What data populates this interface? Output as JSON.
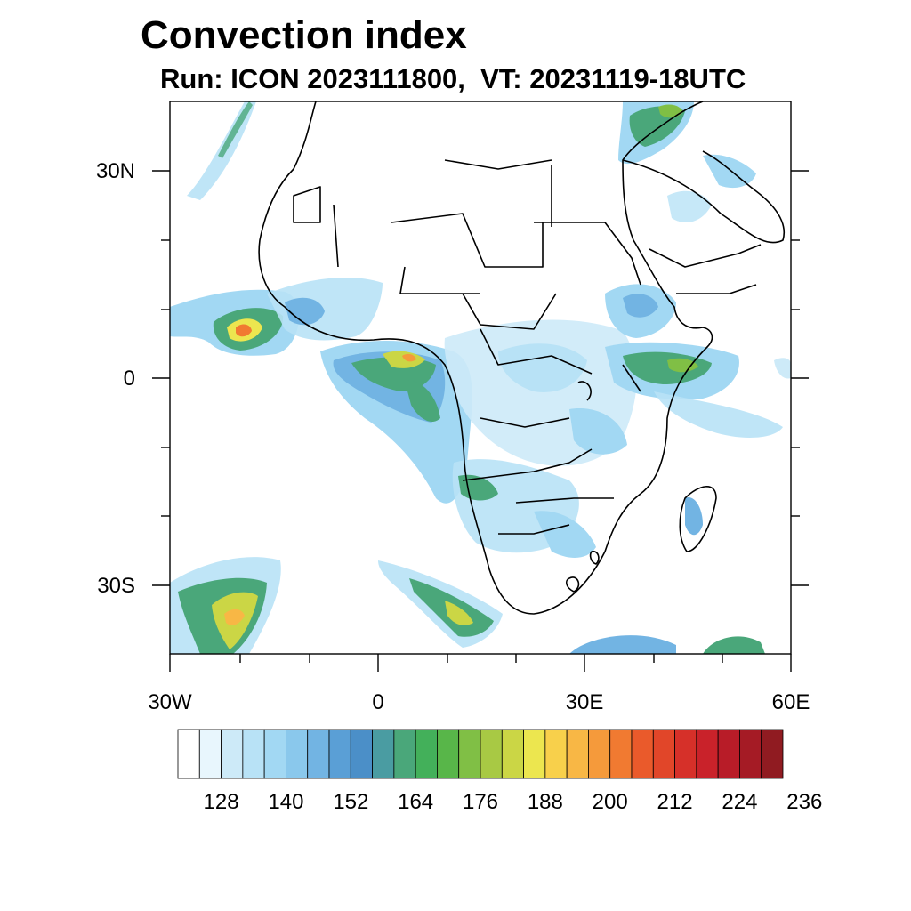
{
  "title": "Convection index",
  "subtitle": "Run: ICON 2023111800,  VT: 20231119-18UTC",
  "map": {
    "lon_range": [
      -30,
      60
    ],
    "lat_range": [
      -40,
      40
    ],
    "lat_ticks": [
      {
        "value": 30,
        "label": "30N"
      },
      {
        "value": 0,
        "label": "0"
      },
      {
        "value": -30,
        "label": "30S"
      }
    ],
    "lon_ticks": [
      {
        "value": -30,
        "label": "30W"
      },
      {
        "value": 0,
        "label": "0"
      },
      {
        "value": 30,
        "label": "30E"
      },
      {
        "value": 60,
        "label": "60E"
      }
    ]
  },
  "colorbar": {
    "colors": [
      "#ffffff",
      "#e8f6fd",
      "#cdeaf8",
      "#b8e2f6",
      "#a2d8f3",
      "#8ac8ec",
      "#72b4e3",
      "#5a9fd6",
      "#4b8fc8",
      "#4a9ca2",
      "#4aa77a",
      "#43b05a",
      "#58b649",
      "#80bf45",
      "#a8c944",
      "#cbd645",
      "#ece64f",
      "#f8d04b",
      "#f8b745",
      "#f59a3b",
      "#f17a31",
      "#ea5a2b",
      "#e14629",
      "#d63029",
      "#c9222a",
      "#b81c28",
      "#a51b25",
      "#901b21"
    ],
    "labels": [
      "128",
      "140",
      "152",
      "164",
      "176",
      "188",
      "200",
      "212",
      "224",
      "236"
    ]
  }
}
